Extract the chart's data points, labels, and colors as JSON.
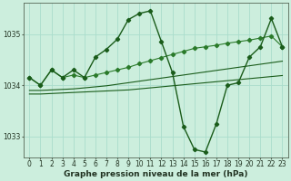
{
  "background_color": "#cceedd",
  "grid_color": "#aaddcc",
  "line_color_dark": "#1a5c1a",
  "line_color_med": "#2a7a2a",
  "xlabel": "Graphe pression niveau de la mer (hPa)",
  "xlabel_fontsize": 6.5,
  "tick_fontsize": 5.5,
  "xlim": [
    -0.5,
    23.5
  ],
  "ylim": [
    1032.6,
    1035.6
  ],
  "yticks": [
    1033,
    1034,
    1035
  ],
  "xticks": [
    0,
    1,
    2,
    3,
    4,
    5,
    6,
    7,
    8,
    9,
    10,
    11,
    12,
    13,
    14,
    15,
    16,
    17,
    18,
    19,
    20,
    21,
    22,
    23
  ],
  "series_zigzag_x": [
    0,
    1,
    2,
    3,
    4,
    5,
    6,
    7,
    8,
    9,
    10,
    11,
    12,
    13,
    14,
    15,
    16,
    17,
    18,
    19,
    20,
    21,
    22,
    23
  ],
  "series_zigzag_y": [
    1034.15,
    1034.0,
    1034.3,
    1034.15,
    1034.3,
    1034.15,
    1034.55,
    1034.7,
    1034.9,
    1035.28,
    1035.4,
    1035.45,
    1034.85,
    1034.25,
    1033.2,
    1032.75,
    1032.7,
    1033.25,
    1034.0,
    1034.05,
    1034.55,
    1034.75,
    1035.3,
    1034.75
  ],
  "series_trend1_x": [
    0,
    1,
    2,
    3,
    4,
    5,
    6,
    7,
    8,
    9,
    10,
    11,
    12,
    13,
    14,
    15,
    16,
    17,
    18,
    19,
    20,
    21,
    22,
    23
  ],
  "series_trend1_y": [
    1033.83,
    1033.83,
    1033.84,
    1033.85,
    1033.86,
    1033.87,
    1033.88,
    1033.89,
    1033.9,
    1033.91,
    1033.93,
    1033.95,
    1033.97,
    1033.99,
    1034.01,
    1034.03,
    1034.05,
    1034.07,
    1034.09,
    1034.11,
    1034.13,
    1034.15,
    1034.17,
    1034.19
  ],
  "series_trend2_x": [
    0,
    1,
    2,
    3,
    4,
    5,
    6,
    7,
    8,
    9,
    10,
    11,
    12,
    13,
    14,
    15,
    16,
    17,
    18,
    19,
    20,
    21,
    22,
    23
  ],
  "series_trend2_y": [
    1033.9,
    1033.9,
    1033.91,
    1033.92,
    1033.93,
    1033.95,
    1033.97,
    1033.99,
    1034.02,
    1034.05,
    1034.08,
    1034.11,
    1034.14,
    1034.17,
    1034.2,
    1034.23,
    1034.26,
    1034.29,
    1034.32,
    1034.35,
    1034.38,
    1034.41,
    1034.44,
    1034.47
  ],
  "series_upper_x": [
    0,
    1,
    2,
    3,
    4,
    5,
    6,
    7,
    8,
    9,
    10,
    11,
    12,
    13,
    14,
    15,
    16,
    17,
    18,
    19,
    20,
    21,
    22,
    23
  ],
  "series_upper_y": [
    1034.15,
    1034.0,
    1034.3,
    1034.15,
    1034.2,
    1034.15,
    1034.2,
    1034.25,
    1034.3,
    1034.35,
    1034.42,
    1034.48,
    1034.54,
    1034.6,
    1034.66,
    1034.72,
    1034.75,
    1034.78,
    1034.82,
    1034.85,
    1034.88,
    1034.92,
    1034.96,
    1034.75
  ]
}
